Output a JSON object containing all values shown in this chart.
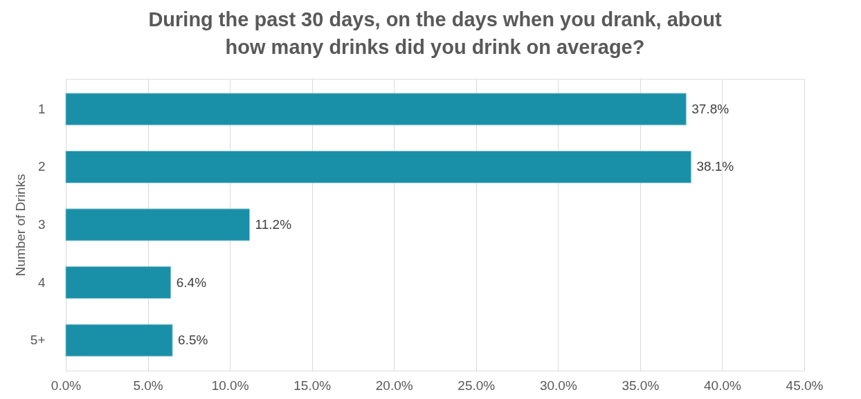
{
  "chart_data": {
    "type": "bar",
    "orientation": "horizontal",
    "title": [
      "During the past 30 days, on the days when you drank, about",
      "how many drinks did you drink on average?"
    ],
    "ylabel": "Number of Drinks",
    "categories": [
      "1",
      "2",
      "3",
      "4",
      "5+"
    ],
    "values": [
      37.8,
      38.1,
      11.2,
      6.4,
      6.5
    ],
    "value_labels": [
      "37.8%",
      "38.1%",
      "11.2%",
      "6.4%",
      "6.5%"
    ],
    "color": "#1a8fa8",
    "xlim": [
      0,
      45
    ],
    "xticks": [
      {
        "value": 0,
        "label": "0.0%"
      },
      {
        "value": 5,
        "label": "5.0%"
      },
      {
        "value": 10,
        "label": "10.0%"
      },
      {
        "value": 15,
        "label": "15.0%"
      },
      {
        "value": 20,
        "label": "20.0%"
      },
      {
        "value": 25,
        "label": "25.0%"
      },
      {
        "value": 30,
        "label": "30.0%"
      },
      {
        "value": 35,
        "label": "35.0%"
      },
      {
        "value": 40,
        "label": "40.0%"
      },
      {
        "value": 45,
        "label": "45.0%"
      }
    ],
    "grid": "x"
  }
}
